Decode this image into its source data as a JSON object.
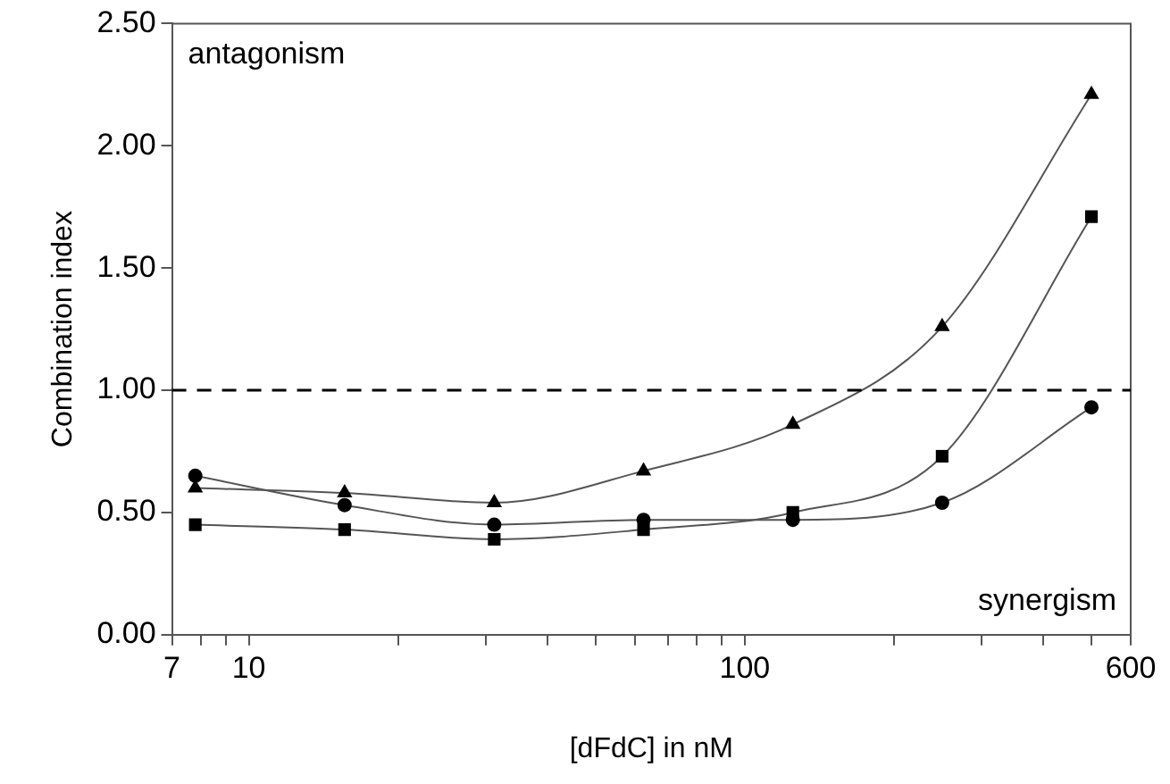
{
  "chart_data": {
    "type": "line",
    "xlabel": "[dFdC] in nM",
    "ylabel": "Combination index",
    "annotations": [
      "antagonism",
      "synergism"
    ],
    "x": [
      7.8,
      15.6,
      31.25,
      62.5,
      125,
      250,
      500
    ],
    "series": [
      {
        "color": "#000000",
        "marker": "circle",
        "values": [
          0.65,
          0.53,
          0.45,
          0.47,
          0.47,
          0.54,
          0.93
        ]
      },
      {
        "color": "#000000",
        "marker": "square",
        "values": [
          0.45,
          0.43,
          0.39,
          0.43,
          0.5,
          0.73,
          1.71
        ]
      },
      {
        "color": "#000000",
        "marker": "triangle",
        "values": [
          0.6,
          0.58,
          0.54,
          0.67,
          0.86,
          1.26,
          2.21
        ]
      }
    ],
    "log": "x",
    "xlim": [
      7,
      600
    ],
    "xticks": [
      7,
      {
        "value": 8,
        "label": null
      },
      {
        "value": 9,
        "label": null
      },
      10,
      {
        "value": 20,
        "label": null
      },
      {
        "value": 30,
        "label": null
      },
      {
        "value": 40,
        "label": null
      },
      {
        "value": 50,
        "label": null
      },
      {
        "value": 60,
        "label": null
      },
      {
        "value": 70,
        "label": null
      },
      {
        "value": 80,
        "label": null
      },
      {
        "value": 90,
        "label": null
      },
      100,
      {
        "value": 200,
        "label": null
      },
      {
        "value": 300,
        "label": null
      },
      {
        "value": 400,
        "label": null
      },
      {
        "value": 500,
        "label": null
      },
      600
    ],
    "ylim": [
      0,
      2.5
    ],
    "yticks": [
      {
        "value": 0,
        "label": "0.00"
      },
      {
        "value": 0.5,
        "label": "0.50"
      },
      {
        "value": 1,
        "label": "1.00"
      },
      {
        "value": 1.5,
        "label": "1.50"
      },
      {
        "value": 2,
        "label": "2.00"
      },
      {
        "value": 2.5,
        "label": "2.50"
      }
    ],
    "ref_lines": [
      {
        "axis": "y",
        "value": 1,
        "line_style": "dashed",
        "color": "#000000"
      }
    ],
    "grid": false,
    "legend": false,
    "line_style": "solid"
  }
}
